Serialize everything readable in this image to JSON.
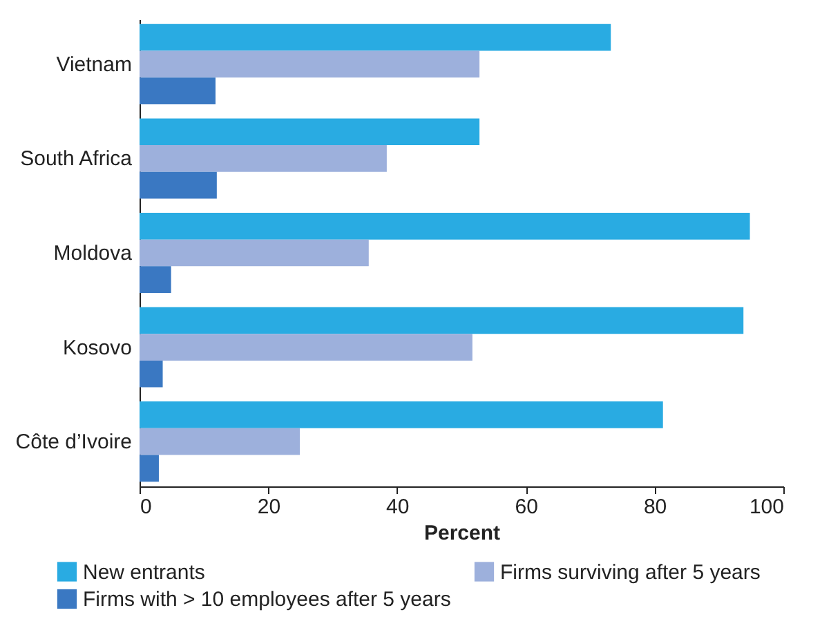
{
  "chart_data": {
    "type": "bar",
    "orientation": "horizontal",
    "xlabel": "Percent",
    "categories": [
      "Vietnam",
      "South Africa",
      "Moldova",
      "Kosovo",
      "Côte d’Ivoire"
    ],
    "series": [
      {
        "name": "New entrants",
        "color": "#29abe2",
        "values": [
          73.2,
          52.8,
          94.8,
          93.8,
          81.3
        ]
      },
      {
        "name": "Firms surviving after 5 years",
        "color": "#9db0dc",
        "values": [
          52.8,
          38.4,
          35.6,
          51.7,
          24.9
        ]
      },
      {
        "name": "Firms with > 10 employees after 5 years",
        "color": "#3a78c2",
        "values": [
          11.8,
          12.0,
          4.9,
          3.6,
          3.0
        ]
      }
    ],
    "xlim": [
      0,
      100
    ],
    "xticks": [
      0,
      20,
      40,
      60,
      80,
      100
    ],
    "grid": false,
    "legend": "bottom"
  }
}
